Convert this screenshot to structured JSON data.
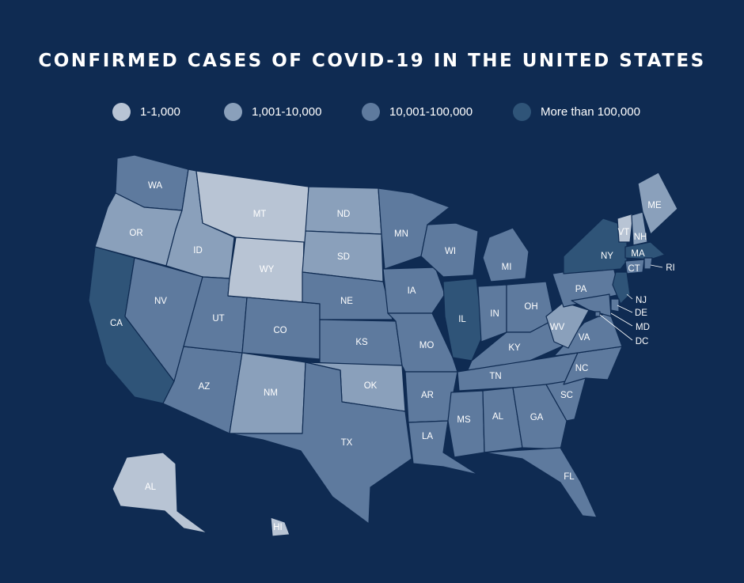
{
  "title": "CONFIRMED CASES OF COVID-19 IN THE UNITED STATES",
  "legend": [
    {
      "label": "1-1,000",
      "color": "#b8c4d4"
    },
    {
      "label": "1,001-10,000",
      "color": "#8aa0bb"
    },
    {
      "label": "10,001-100,000",
      "color": "#5e7a9e"
    },
    {
      "label": "More than 100,000",
      "color": "#2f5478"
    }
  ],
  "states": [
    {
      "abbr": "WA",
      "tier": 2
    },
    {
      "abbr": "OR",
      "tier": 1
    },
    {
      "abbr": "CA",
      "tier": 3
    },
    {
      "abbr": "ID",
      "tier": 1
    },
    {
      "abbr": "NV",
      "tier": 2
    },
    {
      "abbr": "AZ",
      "tier": 2
    },
    {
      "abbr": "UT",
      "tier": 2
    },
    {
      "abbr": "MT",
      "tier": 0
    },
    {
      "abbr": "WY",
      "tier": 0
    },
    {
      "abbr": "CO",
      "tier": 2
    },
    {
      "abbr": "NM",
      "tier": 1
    },
    {
      "abbr": "ND",
      "tier": 1
    },
    {
      "abbr": "SD",
      "tier": 1
    },
    {
      "abbr": "NE",
      "tier": 2
    },
    {
      "abbr": "KS",
      "tier": 2
    },
    {
      "abbr": "OK",
      "tier": 1
    },
    {
      "abbr": "TX",
      "tier": 2
    },
    {
      "abbr": "MN",
      "tier": 2
    },
    {
      "abbr": "IA",
      "tier": 2
    },
    {
      "abbr": "MO",
      "tier": 2
    },
    {
      "abbr": "AR",
      "tier": 2
    },
    {
      "abbr": "LA",
      "tier": 2
    },
    {
      "abbr": "WI",
      "tier": 2
    },
    {
      "abbr": "IL",
      "tier": 3
    },
    {
      "abbr": "MI",
      "tier": 2
    },
    {
      "abbr": "IN",
      "tier": 2
    },
    {
      "abbr": "OH",
      "tier": 2
    },
    {
      "abbr": "KY",
      "tier": 2
    },
    {
      "abbr": "TN",
      "tier": 2
    },
    {
      "abbr": "MS",
      "tier": 2
    },
    {
      "abbr": "AL",
      "tier": 2
    },
    {
      "abbr": "GA",
      "tier": 2
    },
    {
      "abbr": "FL",
      "tier": 2
    },
    {
      "abbr": "SC",
      "tier": 2
    },
    {
      "abbr": "NC",
      "tier": 2
    },
    {
      "abbr": "VA",
      "tier": 2
    },
    {
      "abbr": "WV",
      "tier": 1
    },
    {
      "abbr": "PA",
      "tier": 2
    },
    {
      "abbr": "NY",
      "tier": 3
    },
    {
      "abbr": "VT",
      "tier": 0
    },
    {
      "abbr": "NH",
      "tier": 1
    },
    {
      "abbr": "ME",
      "tier": 1
    },
    {
      "abbr": "MA",
      "tier": 3
    },
    {
      "abbr": "CT",
      "tier": 2
    },
    {
      "abbr": "RI",
      "tier": 2
    },
    {
      "abbr": "NJ",
      "tier": 3
    },
    {
      "abbr": "DE",
      "tier": 2
    },
    {
      "abbr": "MD",
      "tier": 2
    },
    {
      "abbr": "DC",
      "tier": 2
    },
    {
      "abbr": "AL",
      "tier": 0
    },
    {
      "abbr": "HI",
      "tier": 0
    }
  ]
}
